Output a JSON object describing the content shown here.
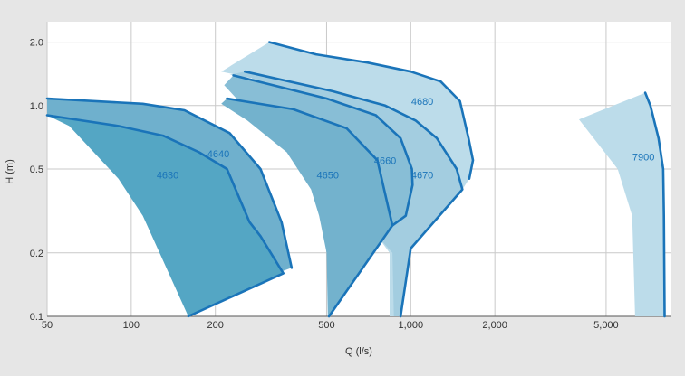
{
  "chart_data": {
    "type": "area",
    "xlabel": "Q (l/s)",
    "ylabel": "H (m)",
    "x_scale": "log",
    "y_scale": "log",
    "xlim": [
      50,
      8500
    ],
    "ylim": [
      0.1,
      2.5
    ],
    "x_ticks": [
      {
        "value": 50,
        "label": "50"
      },
      {
        "value": 100,
        "label": "100"
      },
      {
        "value": 200,
        "label": "200"
      },
      {
        "value": 500,
        "label": "500"
      },
      {
        "value": 1000,
        "label": "1,000"
      },
      {
        "value": 2000,
        "label": "2,000"
      },
      {
        "value": 5000,
        "label": "5,000"
      }
    ],
    "y_ticks": [
      {
        "value": 0.1,
        "label": "0.1"
      },
      {
        "value": 0.2,
        "label": "0.2"
      },
      {
        "value": 0.5,
        "label": "0.5"
      },
      {
        "value": 1.0,
        "label": "1.0"
      },
      {
        "value": 2.0,
        "label": "2.0"
      }
    ],
    "grid": true,
    "series": [
      {
        "name": "4680",
        "fill": "#bcdcea",
        "label_at": [
          1100,
          1.05
        ],
        "region": [
          [
            312,
            2.0
          ],
          [
            458,
            1.75
          ],
          [
            700,
            1.6
          ],
          [
            1000,
            1.45
          ],
          [
            1280,
            1.3
          ],
          [
            1500,
            1.05
          ],
          [
            1610,
            0.7
          ],
          [
            1670,
            0.55
          ],
          [
            1620,
            0.45
          ],
          [
            1530,
            0.4
          ],
          [
            1000,
            0.22
          ],
          [
            880,
            0.1
          ],
          [
            840,
            0.1
          ],
          [
            840,
            0.2
          ],
          [
            760,
            0.24
          ],
          [
            620,
            0.35
          ],
          [
            480,
            0.5
          ],
          [
            370,
            0.8
          ],
          [
            270,
            1.35
          ],
          [
            210,
            1.45
          ]
        ],
        "outline": [
          [
            312,
            2.0
          ],
          [
            458,
            1.75
          ],
          [
            700,
            1.6
          ],
          [
            1000,
            1.45
          ],
          [
            1280,
            1.3
          ],
          [
            1500,
            1.05
          ],
          [
            1610,
            0.7
          ],
          [
            1670,
            0.55
          ],
          [
            1620,
            0.45
          ]
        ]
      },
      {
        "name": "4670",
        "fill": "#a3cde0",
        "label_at": [
          1100,
          0.47
        ],
        "region": [
          [
            255,
            1.45
          ],
          [
            525,
            1.17
          ],
          [
            810,
            1.0
          ],
          [
            1040,
            0.85
          ],
          [
            1240,
            0.7
          ],
          [
            1460,
            0.5
          ],
          [
            1530,
            0.4
          ],
          [
            1000,
            0.21
          ],
          [
            920,
            0.1
          ],
          [
            870,
            0.1
          ],
          [
            860,
            0.2
          ],
          [
            760,
            0.24
          ],
          [
            620,
            0.35
          ],
          [
            480,
            0.5
          ],
          [
            370,
            0.8
          ],
          [
            270,
            1.35
          ],
          [
            225,
            1.4
          ]
        ],
        "outline": [
          [
            255,
            1.45
          ],
          [
            525,
            1.17
          ],
          [
            810,
            1.0
          ],
          [
            1040,
            0.85
          ],
          [
            1240,
            0.7
          ],
          [
            1460,
            0.5
          ],
          [
            1530,
            0.4
          ],
          [
            1000,
            0.21
          ],
          [
            920,
            0.1
          ]
        ]
      },
      {
        "name": "4660",
        "fill": "#88bed6",
        "label_at": [
          810,
          0.55
        ],
        "region": [
          [
            232,
            1.39
          ],
          [
            500,
            1.08
          ],
          [
            750,
            0.9
          ],
          [
            920,
            0.7
          ],
          [
            1010,
            0.5
          ],
          [
            1015,
            0.42
          ],
          [
            960,
            0.3
          ],
          [
            860,
            0.27
          ],
          [
            700,
            0.28
          ],
          [
            560,
            0.38
          ],
          [
            430,
            0.5
          ],
          [
            340,
            0.7
          ],
          [
            270,
            0.9
          ],
          [
            215,
            1.25
          ]
        ],
        "outline": [
          [
            232,
            1.39
          ],
          [
            500,
            1.08
          ],
          [
            750,
            0.9
          ],
          [
            920,
            0.7
          ],
          [
            1010,
            0.5
          ],
          [
            1015,
            0.42
          ],
          [
            960,
            0.3
          ],
          [
            860,
            0.27
          ]
        ]
      },
      {
        "name": "4650",
        "fill": "#73b2cd",
        "label_at": [
          505,
          0.47
        ],
        "region": [
          [
            220,
            1.08
          ],
          [
            380,
            0.96
          ],
          [
            590,
            0.78
          ],
          [
            760,
            0.55
          ],
          [
            860,
            0.27
          ],
          [
            510,
            0.1
          ],
          [
            505,
            0.1
          ],
          [
            500,
            0.2
          ],
          [
            470,
            0.3
          ],
          [
            440,
            0.4
          ],
          [
            360,
            0.6
          ],
          [
            260,
            0.85
          ],
          [
            210,
            1.02
          ]
        ],
        "outline": [
          [
            220,
            1.08
          ],
          [
            380,
            0.96
          ],
          [
            590,
            0.78
          ],
          [
            760,
            0.55
          ],
          [
            860,
            0.27
          ],
          [
            510,
            0.1
          ]
        ]
      },
      {
        "name": "4640",
        "fill": "#6fb0cd",
        "label_at": [
          205,
          0.59
        ],
        "region": [
          [
            50,
            1.08
          ],
          [
            110,
            1.02
          ],
          [
            155,
            0.95
          ],
          [
            225,
            0.74
          ],
          [
            290,
            0.5
          ],
          [
            345,
            0.28
          ],
          [
            375,
            0.17
          ],
          [
            290,
            0.15
          ],
          [
            265,
            0.28
          ],
          [
            220,
            0.5
          ],
          [
            175,
            0.6
          ],
          [
            130,
            0.72
          ],
          [
            90,
            0.8
          ],
          [
            50,
            0.9
          ]
        ],
        "outline": [
          [
            50,
            1.08
          ],
          [
            110,
            1.02
          ],
          [
            155,
            0.95
          ],
          [
            225,
            0.74
          ],
          [
            290,
            0.5
          ],
          [
            345,
            0.28
          ],
          [
            375,
            0.17
          ]
        ]
      },
      {
        "name": "4630",
        "fill": "#54a6c4",
        "label_at": [
          135,
          0.47
        ],
        "region": [
          [
            50,
            0.9
          ],
          [
            90,
            0.8
          ],
          [
            130,
            0.72
          ],
          [
            175,
            0.6
          ],
          [
            220,
            0.5
          ],
          [
            265,
            0.28
          ],
          [
            290,
            0.24
          ],
          [
            350,
            0.16
          ],
          [
            160,
            0.1
          ],
          [
            110,
            0.3
          ],
          [
            90,
            0.45
          ],
          [
            60,
            0.8
          ]
        ],
        "outline": [
          [
            50,
            0.9
          ],
          [
            90,
            0.8
          ],
          [
            130,
            0.72
          ],
          [
            175,
            0.6
          ],
          [
            220,
            0.5
          ],
          [
            265,
            0.28
          ],
          [
            290,
            0.24
          ],
          [
            350,
            0.16
          ],
          [
            160,
            0.1
          ]
        ]
      },
      {
        "name": "7900",
        "fill": "#bcdcea",
        "label_at": [
          6800,
          0.57
        ],
        "region": [
          [
            4000,
            0.86
          ],
          [
            6900,
            1.15
          ],
          [
            7200,
            1.0
          ],
          [
            7700,
            0.7
          ],
          [
            8000,
            0.5
          ],
          [
            8050,
            0.3
          ],
          [
            8100,
            0.1
          ],
          [
            6350,
            0.1
          ],
          [
            6200,
            0.3
          ],
          [
            5500,
            0.5
          ]
        ],
        "outline": [
          [
            6900,
            1.15
          ],
          [
            7200,
            1.0
          ],
          [
            7700,
            0.7
          ],
          [
            8000,
            0.5
          ],
          [
            8050,
            0.3
          ],
          [
            8100,
            0.1
          ]
        ]
      }
    ]
  },
  "style": {
    "curve_color": "#1a74b9",
    "label_color": "#1a74b9",
    "grid_color": "#c9c9c9",
    "plot_bg": "#ffffff",
    "page_bg": "#e6e6e6"
  }
}
